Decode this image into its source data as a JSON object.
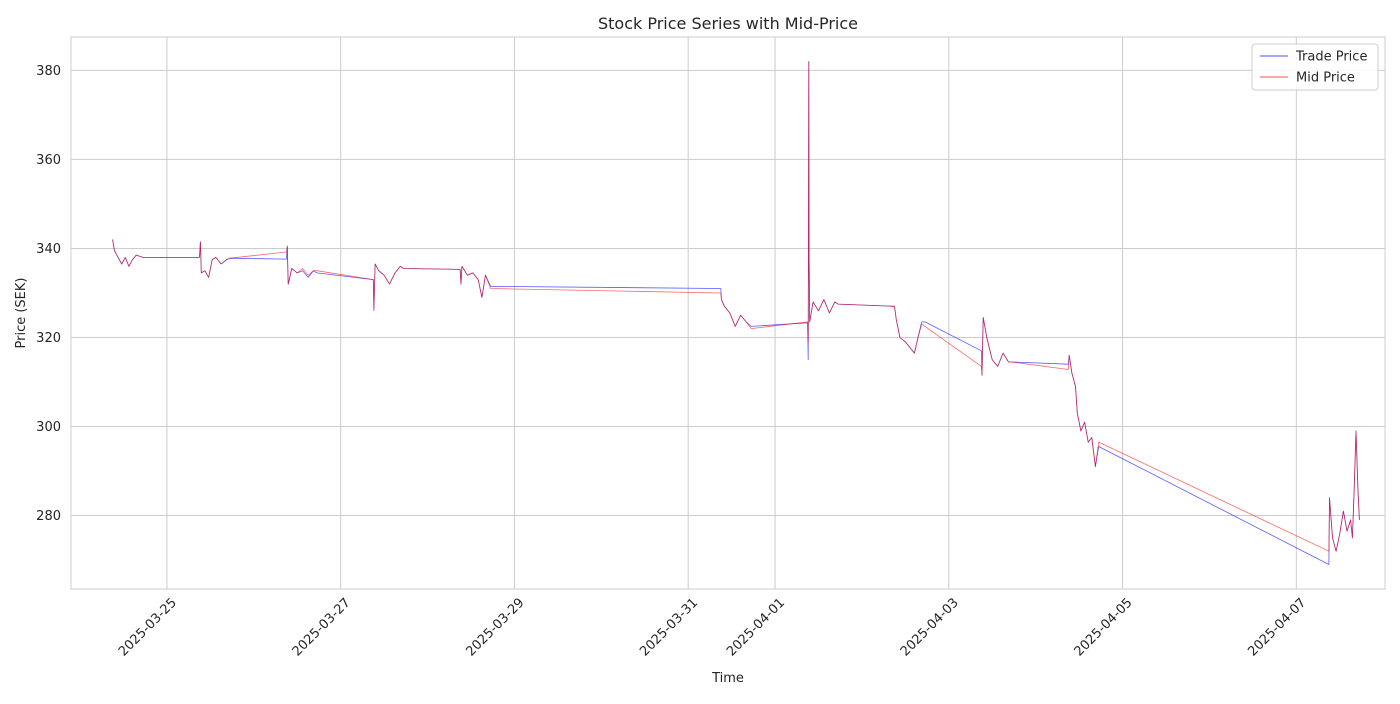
{
  "chart_data": {
    "type": "line",
    "title": "Stock Price Series with Mid-Price",
    "xlabel": "Time",
    "ylabel": "Price (SEK)",
    "x_tick_labels": [
      "2025-03-25",
      "2025-03-27",
      "2025-03-29",
      "2025-03-31",
      "2025-04-01",
      "2025-04-03",
      "2025-04-05",
      "2025-04-07"
    ],
    "y_ticks": [
      280,
      300,
      320,
      340,
      360,
      380
    ],
    "ylim": [
      263.5,
      387.5
    ],
    "xlim": [
      "2025-03-23 21:30",
      "2025-04-08 00:30"
    ],
    "grid": true,
    "legend_position": "top-right",
    "series": [
      {
        "name": "Trade Price",
        "color": "#0000ff",
        "points": [
          [
            "2025-03-24 09:00",
            342
          ],
          [
            "2025-03-24 09:30",
            339.5
          ],
          [
            "2025-03-24 10:30",
            338
          ],
          [
            "2025-03-24 11:30",
            336.5
          ],
          [
            "2025-03-24 12:30",
            338
          ],
          [
            "2025-03-24 13:30",
            336
          ],
          [
            "2025-03-24 14:30",
            337.5
          ],
          [
            "2025-03-24 15:30",
            338.5
          ],
          [
            "2025-03-24 17:25",
            338
          ],
          [
            "2025-03-25 09:00",
            338
          ],
          [
            "2025-03-25 09:15",
            341.5
          ],
          [
            "2025-03-25 09:30",
            334.5
          ],
          [
            "2025-03-25 10:30",
            335
          ],
          [
            "2025-03-25 11:30",
            333.5
          ],
          [
            "2025-03-25 12:30",
            337.5
          ],
          [
            "2025-03-25 13:30",
            338
          ],
          [
            "2025-03-25 15:00",
            336.5
          ],
          [
            "2025-03-25 16:30",
            337.5
          ],
          [
            "2025-03-25 17:25",
            337.8
          ],
          [
            "2025-03-26 09:00",
            337.6
          ],
          [
            "2025-03-26 09:15",
            340.5
          ],
          [
            "2025-03-26 09:30",
            332
          ],
          [
            "2025-03-26 10:30",
            335.5
          ],
          [
            "2025-03-26 12:00",
            334.5
          ],
          [
            "2025-03-26 13:30",
            335
          ],
          [
            "2025-03-26 15:00",
            333.5
          ],
          [
            "2025-03-26 16:30",
            335
          ],
          [
            "2025-03-26 17:25",
            334.5
          ],
          [
            "2025-03-27 09:00",
            333
          ],
          [
            "2025-03-27 09:10",
            326
          ],
          [
            "2025-03-27 09:30",
            336.5
          ],
          [
            "2025-03-27 10:30",
            335
          ],
          [
            "2025-03-27 12:00",
            334
          ],
          [
            "2025-03-27 13:30",
            332
          ],
          [
            "2025-03-27 15:00",
            334.5
          ],
          [
            "2025-03-27 16:30",
            336
          ],
          [
            "2025-03-27 17:25",
            335.5
          ],
          [
            "2025-03-28 09:00",
            335.3
          ],
          [
            "2025-03-28 09:15",
            332
          ],
          [
            "2025-03-28 09:30",
            336
          ],
          [
            "2025-03-28 11:00",
            334
          ],
          [
            "2025-03-28 12:30",
            334.5
          ],
          [
            "2025-03-28 14:00",
            333
          ],
          [
            "2025-03-28 15:00",
            329
          ],
          [
            "2025-03-28 16:00",
            334
          ],
          [
            "2025-03-28 17:25",
            331.5
          ],
          [
            "2025-03-31 09:00",
            331
          ],
          [
            "2025-03-31 09:10",
            328.5
          ],
          [
            "2025-03-31 10:00",
            327
          ],
          [
            "2025-03-31 11:30",
            325.5
          ],
          [
            "2025-03-31 13:00",
            322.5
          ],
          [
            "2025-03-31 14:30",
            325
          ],
          [
            "2025-03-31 16:00",
            323.5
          ],
          [
            "2025-03-31 17:25",
            322.5
          ],
          [
            "2025-04-01 09:00",
            323.3
          ],
          [
            "2025-04-01 09:10",
            315
          ],
          [
            "2025-04-01 09:20",
            382
          ],
          [
            "2025-04-01 09:25",
            337.5
          ],
          [
            "2025-04-01 09:35",
            323.5
          ],
          [
            "2025-04-01 10:30",
            328
          ],
          [
            "2025-04-01 12:00",
            326
          ],
          [
            "2025-04-01 13:30",
            328.5
          ],
          [
            "2025-04-01 15:00",
            325.5
          ],
          [
            "2025-04-01 16:30",
            328
          ],
          [
            "2025-04-01 17:25",
            327.5
          ],
          [
            "2025-04-02 09:00",
            327
          ],
          [
            "2025-04-02 09:30",
            324
          ],
          [
            "2025-04-02 10:30",
            320
          ],
          [
            "2025-04-02 12:00",
            319
          ],
          [
            "2025-04-02 13:30",
            317.5
          ],
          [
            "2025-04-02 14:30",
            316.5
          ],
          [
            "2025-04-02 15:30",
            320
          ],
          [
            "2025-04-02 16:30",
            323.5
          ],
          [
            "2025-04-02 17:25",
            323.5
          ],
          [
            "2025-04-03 09:00",
            317
          ],
          [
            "2025-04-03 09:10",
            311.5
          ],
          [
            "2025-04-03 09:30",
            324.5
          ],
          [
            "2025-04-03 10:30",
            320
          ],
          [
            "2025-04-03 12:00",
            315
          ],
          [
            "2025-04-03 13:30",
            313.5
          ],
          [
            "2025-04-03 15:00",
            316.5
          ],
          [
            "2025-04-03 16:30",
            314.5
          ],
          [
            "2025-04-03 17:25",
            314.5
          ],
          [
            "2025-04-04 09:00",
            314
          ],
          [
            "2025-04-04 09:15",
            316
          ],
          [
            "2025-04-04 10:00",
            312
          ],
          [
            "2025-04-04 11:00",
            309
          ],
          [
            "2025-04-04 11:30",
            303
          ],
          [
            "2025-04-04 12:30",
            299
          ],
          [
            "2025-04-04 13:30",
            301
          ],
          [
            "2025-04-04 14:30",
            296.5
          ],
          [
            "2025-04-04 15:30",
            297.5
          ],
          [
            "2025-04-04 16:30",
            291
          ],
          [
            "2025-04-04 17:25",
            295.5
          ],
          [
            "2025-04-07 09:00",
            269
          ],
          [
            "2025-04-07 09:10",
            284
          ],
          [
            "2025-04-07 10:00",
            275
          ],
          [
            "2025-04-07 11:00",
            272
          ],
          [
            "2025-04-07 12:00",
            276
          ],
          [
            "2025-04-07 13:00",
            281
          ],
          [
            "2025-04-07 14:00",
            276.5
          ],
          [
            "2025-04-07 15:00",
            279
          ],
          [
            "2025-04-07 15:30",
            275
          ],
          [
            "2025-04-07 16:00",
            286
          ],
          [
            "2025-04-07 16:30",
            299
          ],
          [
            "2025-04-07 17:00",
            286
          ],
          [
            "2025-04-07 17:25",
            279
          ]
        ]
      },
      {
        "name": "Mid Price",
        "color": "#ff0000",
        "points": [
          [
            "2025-03-24 09:00",
            342
          ],
          [
            "2025-03-24 09:30",
            339.5
          ],
          [
            "2025-03-24 10:30",
            338
          ],
          [
            "2025-03-24 11:30",
            336.5
          ],
          [
            "2025-03-24 12:30",
            338
          ],
          [
            "2025-03-24 13:30",
            336
          ],
          [
            "2025-03-24 14:30",
            337.5
          ],
          [
            "2025-03-24 15:30",
            338.5
          ],
          [
            "2025-03-24 17:25",
            338
          ],
          [
            "2025-03-25 09:00",
            338
          ],
          [
            "2025-03-25 09:15",
            341.5
          ],
          [
            "2025-03-25 09:30",
            334.5
          ],
          [
            "2025-03-25 10:30",
            335
          ],
          [
            "2025-03-25 11:30",
            333.5
          ],
          [
            "2025-03-25 12:30",
            337.5
          ],
          [
            "2025-03-25 13:30",
            338
          ],
          [
            "2025-03-25 15:00",
            336.5
          ],
          [
            "2025-03-25 16:30",
            337.5
          ],
          [
            "2025-03-25 17:25",
            337.8
          ],
          [
            "2025-03-26 09:00",
            339.2
          ],
          [
            "2025-03-26 09:15",
            340.5
          ],
          [
            "2025-03-26 09:30",
            332
          ],
          [
            "2025-03-26 10:30",
            335.5
          ],
          [
            "2025-03-26 12:00",
            334.5
          ],
          [
            "2025-03-26 13:30",
            335.5
          ],
          [
            "2025-03-26 15:00",
            334
          ],
          [
            "2025-03-26 16:30",
            335
          ],
          [
            "2025-03-26 17:25",
            335
          ],
          [
            "2025-03-27 09:00",
            333
          ],
          [
            "2025-03-27 09:10",
            326.5
          ],
          [
            "2025-03-27 09:30",
            336.5
          ],
          [
            "2025-03-27 10:30",
            335
          ],
          [
            "2025-03-27 12:00",
            334
          ],
          [
            "2025-03-27 13:30",
            332
          ],
          [
            "2025-03-27 15:00",
            334.5
          ],
          [
            "2025-03-27 16:30",
            336
          ],
          [
            "2025-03-27 17:25",
            335.5
          ],
          [
            "2025-03-28 09:00",
            335.3
          ],
          [
            "2025-03-28 09:15",
            332
          ],
          [
            "2025-03-28 09:30",
            336
          ],
          [
            "2025-03-28 11:00",
            334
          ],
          [
            "2025-03-28 12:30",
            334.5
          ],
          [
            "2025-03-28 14:00",
            333
          ],
          [
            "2025-03-28 15:00",
            329
          ],
          [
            "2025-03-28 16:00",
            334
          ],
          [
            "2025-03-28 17:25",
            331
          ],
          [
            "2025-03-31 09:00",
            330
          ],
          [
            "2025-03-31 09:10",
            328.5
          ],
          [
            "2025-03-31 10:00",
            327
          ],
          [
            "2025-03-31 11:30",
            325.5
          ],
          [
            "2025-03-31 13:00",
            322.5
          ],
          [
            "2025-03-31 14:30",
            325
          ],
          [
            "2025-03-31 16:00",
            323.5
          ],
          [
            "2025-03-31 17:25",
            322
          ],
          [
            "2025-04-01 09:00",
            323.5
          ],
          [
            "2025-04-01 09:10",
            319
          ],
          [
            "2025-04-01 09:20",
            382
          ],
          [
            "2025-04-01 09:25",
            337.5
          ],
          [
            "2025-04-01 09:35",
            323.5
          ],
          [
            "2025-04-01 10:30",
            328
          ],
          [
            "2025-04-01 12:00",
            326
          ],
          [
            "2025-04-01 13:30",
            328.5
          ],
          [
            "2025-04-01 15:00",
            325.5
          ],
          [
            "2025-04-01 16:30",
            328
          ],
          [
            "2025-04-01 17:25",
            327.5
          ],
          [
            "2025-04-02 09:00",
            327
          ],
          [
            "2025-04-02 09:30",
            324
          ],
          [
            "2025-04-02 10:30",
            320
          ],
          [
            "2025-04-02 12:00",
            319
          ],
          [
            "2025-04-02 13:30",
            317.5
          ],
          [
            "2025-04-02 14:30",
            316.5
          ],
          [
            "2025-04-02 15:30",
            320
          ],
          [
            "2025-04-02 16:30",
            323
          ],
          [
            "2025-04-02 17:25",
            322.5
          ],
          [
            "2025-04-03 09:00",
            313.5
          ],
          [
            "2025-04-03 09:10",
            311.5
          ],
          [
            "2025-04-03 09:30",
            324.5
          ],
          [
            "2025-04-03 10:30",
            320
          ],
          [
            "2025-04-03 12:00",
            315
          ],
          [
            "2025-04-03 13:30",
            313.5
          ],
          [
            "2025-04-03 15:00",
            316.5
          ],
          [
            "2025-04-03 16:30",
            314.5
          ],
          [
            "2025-04-03 17:25",
            314.5
          ],
          [
            "2025-04-04 09:00",
            312.8
          ],
          [
            "2025-04-04 09:15",
            316
          ],
          [
            "2025-04-04 10:00",
            312
          ],
          [
            "2025-04-04 11:00",
            309
          ],
          [
            "2025-04-04 11:30",
            303
          ],
          [
            "2025-04-04 12:30",
            299
          ],
          [
            "2025-04-04 13:30",
            301
          ],
          [
            "2025-04-04 14:30",
            296.5
          ],
          [
            "2025-04-04 15:30",
            297.5
          ],
          [
            "2025-04-04 16:30",
            291
          ],
          [
            "2025-04-04 17:25",
            296.5
          ],
          [
            "2025-04-07 09:00",
            272
          ],
          [
            "2025-04-07 09:10",
            284
          ],
          [
            "2025-04-07 10:00",
            275
          ],
          [
            "2025-04-07 11:00",
            272
          ],
          [
            "2025-04-07 12:00",
            276
          ],
          [
            "2025-04-07 13:00",
            281
          ],
          [
            "2025-04-07 14:00",
            276.5
          ],
          [
            "2025-04-07 15:00",
            279
          ],
          [
            "2025-04-07 15:30",
            275
          ],
          [
            "2025-04-07 16:00",
            286
          ],
          [
            "2025-04-07 16:30",
            299
          ],
          [
            "2025-04-07 17:00",
            286
          ],
          [
            "2025-04-07 17:25",
            279
          ]
        ]
      }
    ]
  }
}
